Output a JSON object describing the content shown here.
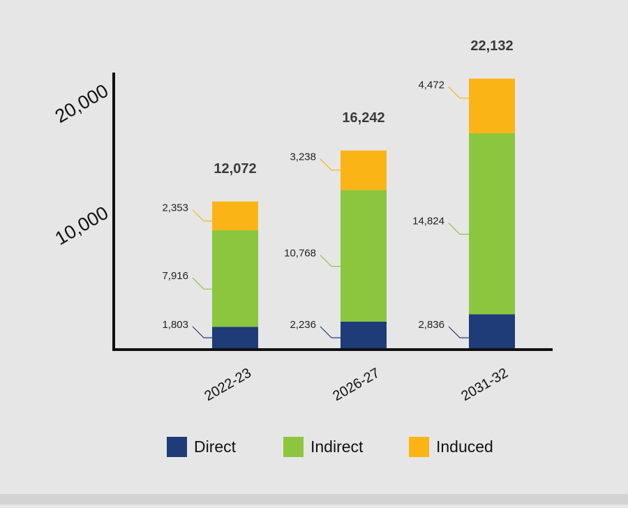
{
  "chart_data": {
    "type": "bar",
    "stacked": true,
    "categories": [
      "2022-23",
      "2026-27",
      "2031-32"
    ],
    "series": [
      {
        "name": "Direct",
        "color": "#1f3b78",
        "values": [
          1803,
          2236,
          2836
        ],
        "labels": [
          "1,803",
          "2,236",
          "2,836"
        ]
      },
      {
        "name": "Indirect",
        "color": "#8cc63f",
        "values": [
          7916,
          10768,
          14824
        ],
        "labels": [
          "7,916",
          "10,768",
          "14,824"
        ]
      },
      {
        "name": "Induced",
        "color": "#fbb416",
        "values": [
          2353,
          3238,
          4472
        ],
        "labels": [
          "2,353",
          "3,238",
          "4,472"
        ]
      }
    ],
    "totals": [
      12072,
      16242,
      22132
    ],
    "total_labels": [
      "12,072",
      "16,242",
      "22,132"
    ],
    "yticks": [
      10000,
      20000
    ],
    "ytick_labels": [
      "10,000",
      "20,000"
    ],
    "ylim": [
      0,
      22500
    ],
    "grid": false,
    "legend": "bottom"
  },
  "colors": {
    "background": "#e6e6e6",
    "axis": "#111111",
    "direct": "#1f3b78",
    "indirect": "#8cc63f",
    "induced": "#fbb416"
  }
}
